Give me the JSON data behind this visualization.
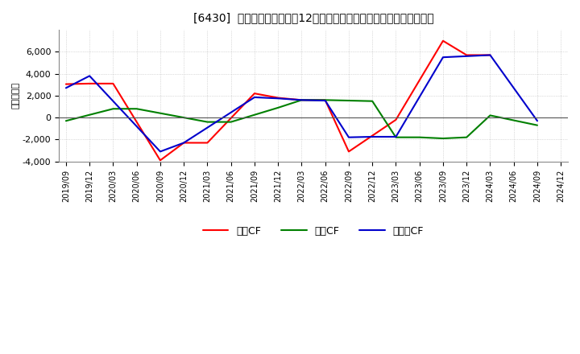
{
  "title": "[6430]  キャッシュフローの12か月移動合計の対前年同期増減額の推移",
  "ylabel": "（百万円）",
  "background_color": "#ffffff",
  "plot_bg_color": "#ffffff",
  "grid_color": "#aaaaaa",
  "ylim": [
    -4000,
    8000
  ],
  "yticks": [
    -4000,
    -2000,
    0,
    2000,
    4000,
    6000
  ],
  "x_labels": [
    "2019/09",
    "2019/12",
    "2020/03",
    "2020/06",
    "2020/09",
    "2020/12",
    "2021/03",
    "2021/06",
    "2021/09",
    "2021/12",
    "2022/03",
    "2022/06",
    "2022/09",
    "2022/12",
    "2023/03",
    "2023/06",
    "2023/09",
    "2023/12",
    "2024/03",
    "2024/06",
    "2024/09",
    "2024/12"
  ],
  "series": {
    "operating": {
      "label": "営業CF",
      "color": "#ff0000",
      "x_indices": [
        0,
        1,
        2,
        4,
        5,
        6,
        8,
        9,
        10,
        11,
        12,
        14,
        16,
        17,
        18
      ],
      "values": [
        3050,
        3100,
        3100,
        -3900,
        -2300,
        -2300,
        2200,
        1800,
        1600,
        1600,
        -3100,
        -200,
        7000,
        5700,
        5700
      ]
    },
    "investing": {
      "label": "投資CF",
      "color": "#008000",
      "x_indices": [
        0,
        2,
        3,
        6,
        7,
        9,
        10,
        11,
        13,
        14,
        15,
        16,
        17,
        18,
        20
      ],
      "values": [
        -300,
        800,
        800,
        -400,
        -400,
        900,
        1600,
        1600,
        1500,
        -1800,
        -1800,
        -1900,
        -1800,
        200,
        -700
      ]
    },
    "free": {
      "label": "フリーCF",
      "color": "#0000cc",
      "x_indices": [
        0,
        1,
        4,
        5,
        8,
        9,
        10,
        11,
        12,
        13,
        14,
        16,
        17,
        18,
        20
      ],
      "values": [
        2700,
        3800,
        -3100,
        -2300,
        1850,
        1750,
        1600,
        1550,
        -1800,
        -1750,
        -1750,
        5500,
        5600,
        5700,
        -300
      ]
    }
  }
}
